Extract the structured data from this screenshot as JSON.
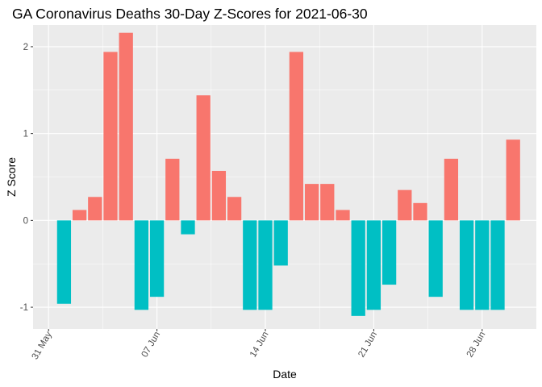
{
  "chart_data": {
    "type": "bar",
    "title": "GA Coronavirus Deaths 30-Day Z-Scores for 2021-06-30",
    "xlabel": "Date",
    "ylabel": "Z Score",
    "x_tick_labels": [
      "31 May",
      "07 Jun",
      "14 Jun",
      "21 Jun",
      "28 Jun"
    ],
    "x_tick_days": [
      0,
      7,
      14,
      21,
      28
    ],
    "y_ticks": [
      -1,
      0,
      1,
      2
    ],
    "y_tick_labels": [
      "-1",
      "0",
      "1",
      "2"
    ],
    "xlim": [
      -1,
      31.5
    ],
    "ylim": [
      -1.25,
      2.25
    ],
    "grid": true,
    "legend": "none",
    "positive_color": "#F8766D",
    "negative_color": "#00BFC4",
    "panel_background": "#EBEBEB",
    "day_offsets": [
      1,
      2,
      3,
      4,
      5,
      6,
      7,
      8,
      9,
      10,
      11,
      12,
      13,
      14,
      15,
      16,
      17,
      18,
      19,
      20,
      21,
      22,
      23,
      24,
      25,
      26,
      27,
      28,
      29,
      30
    ],
    "values": [
      -0.96,
      0.12,
      0.27,
      1.94,
      2.16,
      -1.03,
      -0.88,
      0.71,
      -0.16,
      1.44,
      0.57,
      0.27,
      -1.03,
      -1.03,
      -0.52,
      1.94,
      0.42,
      0.42,
      0.12,
      -1.1,
      -1.03,
      -0.74,
      0.35,
      0.2,
      -0.88,
      0.71,
      -1.03,
      -1.03,
      -1.03,
      0.93
    ]
  }
}
